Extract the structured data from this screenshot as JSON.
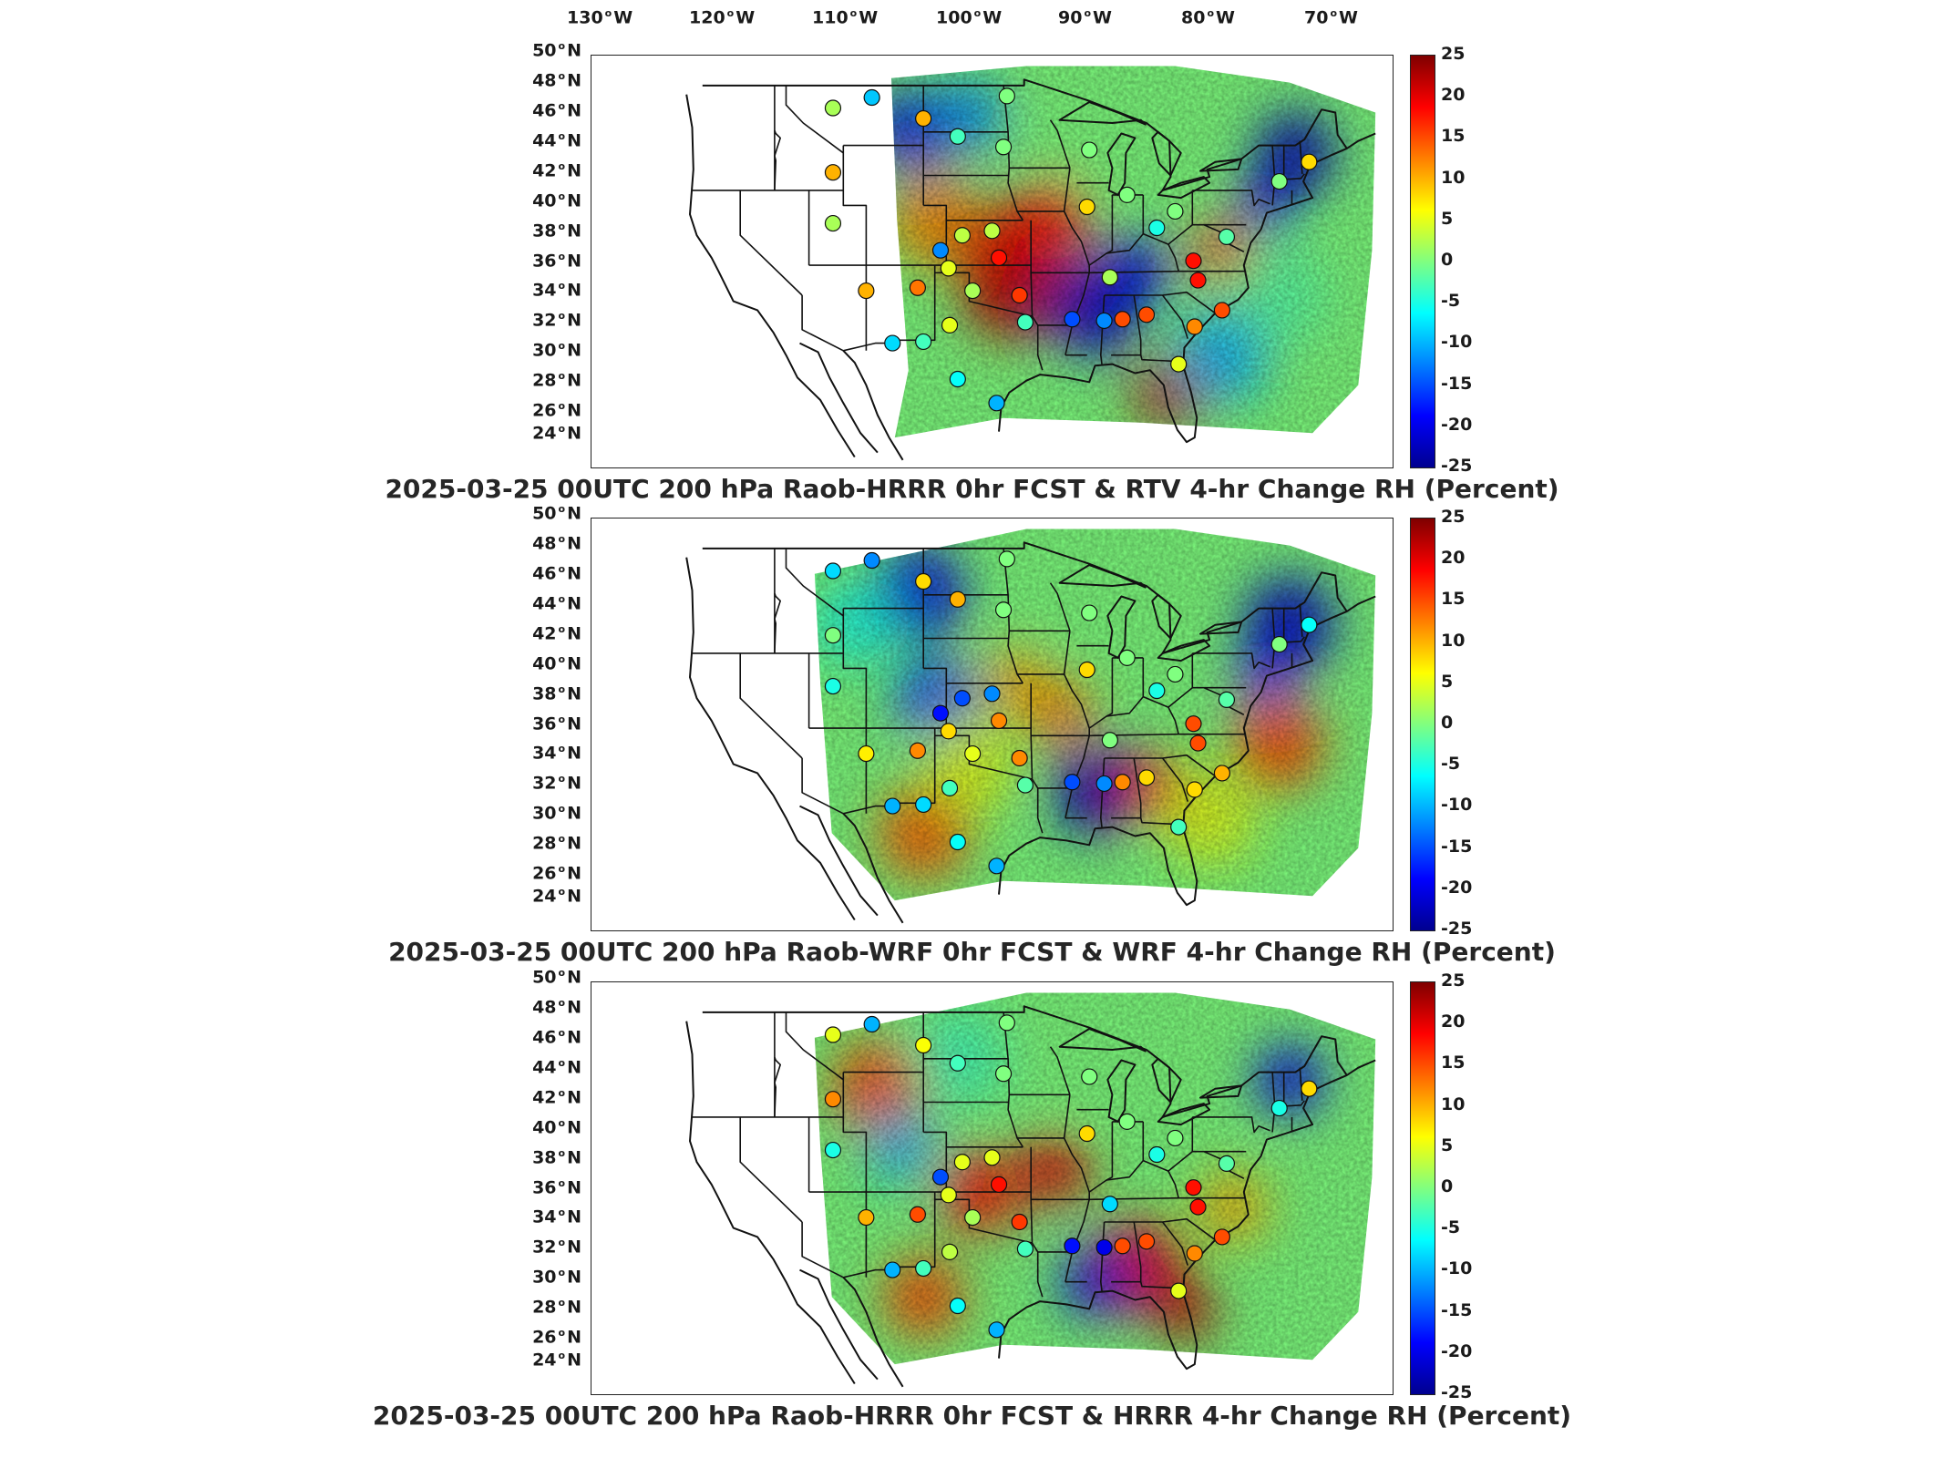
{
  "top_longitude_labels": [
    {
      "value": "130",
      "unit": "W"
    },
    {
      "value": "120",
      "unit": "W"
    },
    {
      "value": "110",
      "unit": "W"
    },
    {
      "value": "100",
      "unit": "W"
    },
    {
      "value": "90",
      "unit": "W"
    },
    {
      "value": "80",
      "unit": "W"
    },
    {
      "value": "70",
      "unit": "W"
    }
  ],
  "latitude_labels": [
    "50",
    "48",
    "46",
    "44",
    "42",
    "40",
    "38",
    "36",
    "34",
    "32",
    "30",
    "28",
    "26",
    "24"
  ],
  "latitude_unit": "N",
  "colorbar": {
    "ticks": [
      "25",
      "20",
      "15",
      "10",
      "5",
      "0",
      "-5",
      "-10",
      "-15",
      "-20",
      "-25"
    ],
    "min": -25,
    "max": 25,
    "colors": [
      "#7f0000",
      "#ff0000",
      "#ff7f00",
      "#ffff00",
      "#80ff80",
      "#00ffff",
      "#0080ff",
      "#0000ff",
      "#00008f"
    ]
  },
  "panels": [
    {
      "id": "rtv",
      "caption": "2025-03-25 00UTC 200 hPa Raob-HRRR 0hr FCST & RTV 4-hr Change RH (Percent)"
    },
    {
      "id": "wrf",
      "caption": "2025-03-25 00UTC 200 hPa Raob-WRF 0hr FCST & WRF 4-hr Change RH (Percent)"
    },
    {
      "id": "hrrr",
      "caption": "2025-03-25 00UTC 200 hPa Raob-HRRR 0hr FCST & HRRR 4-hr Change RH (Percent)"
    }
  ],
  "map_data": {
    "lon_range": [
      -130,
      -65
    ],
    "lat_range": [
      24,
      50
    ],
    "stations": [
      {
        "lon": -111.9,
        "lat": 47.5,
        "values": [
          2,
          -8,
          5
        ]
      },
      {
        "lon": -108.5,
        "lat": 48.2,
        "values": [
          -9,
          -12,
          -10
        ]
      },
      {
        "lon": -104.0,
        "lat": 46.8,
        "values": [
          10,
          8,
          6
        ]
      },
      {
        "lon": -101.0,
        "lat": 45.6,
        "values": [
          -3,
          10,
          -3
        ]
      },
      {
        "lon": -96.7,
        "lat": 48.3,
        "values": [
          0,
          0,
          0
        ]
      },
      {
        "lon": -97.0,
        "lat": 44.9,
        "values": [
          0,
          0,
          0
        ]
      },
      {
        "lon": -89.5,
        "lat": 44.7,
        "values": [
          0,
          0,
          0
        ]
      },
      {
        "lon": -111.9,
        "lat": 43.2,
        "values": [
          10,
          0,
          12
        ]
      },
      {
        "lon": -111.9,
        "lat": 39.8,
        "values": [
          2,
          -5,
          -5
        ]
      },
      {
        "lon": -109.0,
        "lat": 35.3,
        "values": [
          10,
          7,
          10
        ]
      },
      {
        "lon": -104.5,
        "lat": 35.5,
        "values": [
          13,
          12,
          15
        ]
      },
      {
        "lon": -102.5,
        "lat": 38.0,
        "values": [
          -12,
          -18,
          -15
        ]
      },
      {
        "lon": -100.6,
        "lat": 39.0,
        "values": [
          3,
          -15,
          5
        ]
      },
      {
        "lon": -98.0,
        "lat": 39.3,
        "values": [
          3,
          -12,
          5
        ]
      },
      {
        "lon": -101.8,
        "lat": 36.8,
        "values": [
          5,
          8,
          5
        ]
      },
      {
        "lon": -99.7,
        "lat": 35.3,
        "values": [
          2,
          5,
          2
        ]
      },
      {
        "lon": -97.4,
        "lat": 37.5,
        "values": [
          18,
          12,
          18
        ]
      },
      {
        "lon": -95.6,
        "lat": 35.0,
        "values": [
          16,
          12,
          16
        ]
      },
      {
        "lon": -95.1,
        "lat": 33.2,
        "values": [
          -3,
          -2,
          -3
        ]
      },
      {
        "lon": -101.7,
        "lat": 33.0,
        "values": [
          5,
          -3,
          3
        ]
      },
      {
        "lon": -104.0,
        "lat": 31.9,
        "values": [
          -3,
          -8,
          -3
        ]
      },
      {
        "lon": -106.7,
        "lat": 31.8,
        "values": [
          -8,
          -10,
          -10
        ]
      },
      {
        "lon": -101.0,
        "lat": 29.4,
        "values": [
          -6,
          -6,
          -6
        ]
      },
      {
        "lon": -97.6,
        "lat": 27.8,
        "values": [
          -10,
          -10,
          -10
        ]
      },
      {
        "lon": -91.0,
        "lat": 33.4,
        "values": [
          -15,
          -15,
          -18
        ]
      },
      {
        "lon": -88.2,
        "lat": 33.3,
        "values": [
          -12,
          -12,
          -20
        ]
      },
      {
        "lon": -87.7,
        "lat": 36.2,
        "values": [
          2,
          0,
          -8
        ]
      },
      {
        "lon": -86.6,
        "lat": 33.4,
        "values": [
          15,
          12,
          15
        ]
      },
      {
        "lon": -84.5,
        "lat": 33.7,
        "values": [
          15,
          8,
          15
        ]
      },
      {
        "lon": -83.6,
        "lat": 39.5,
        "values": [
          -5,
          -5,
          -5
        ]
      },
      {
        "lon": -86.2,
        "lat": 41.7,
        "values": [
          0,
          0,
          0
        ]
      },
      {
        "lon": -82.0,
        "lat": 40.6,
        "values": [
          0,
          0,
          0
        ]
      },
      {
        "lon": -89.7,
        "lat": 40.9,
        "values": [
          8,
          8,
          8
        ]
      },
      {
        "lon": -80.4,
        "lat": 37.3,
        "values": [
          18,
          15,
          18
        ]
      },
      {
        "lon": -80.0,
        "lat": 36.0,
        "values": [
          18,
          15,
          18
        ]
      },
      {
        "lon": -77.9,
        "lat": 34.0,
        "values": [
          15,
          10,
          15
        ]
      },
      {
        "lon": -80.3,
        "lat": 32.9,
        "values": [
          12,
          8,
          12
        ]
      },
      {
        "lon": -81.7,
        "lat": 30.4,
        "values": [
          5,
          -3,
          5
        ]
      },
      {
        "lon": -77.5,
        "lat": 38.9,
        "values": [
          -2,
          -2,
          -2
        ]
      },
      {
        "lon": -72.9,
        "lat": 42.6,
        "values": [
          0,
          0,
          -5
        ]
      },
      {
        "lon": -70.3,
        "lat": 43.9,
        "values": [
          8,
          -6,
          8
        ]
      }
    ],
    "blobs": [
      [
        {
          "lon": -96,
          "lat": 36,
          "r": 5,
          "v": 22
        },
        {
          "lon": -93,
          "lat": 40,
          "r": 3.5,
          "v": 18
        },
        {
          "lon": -103,
          "lat": 40,
          "r": 4,
          "v": 12
        },
        {
          "lon": -98,
          "lat": 38.5,
          "r": 3,
          "v": 20
        },
        {
          "lon": -105,
          "lat": 46,
          "r": 3.5,
          "v": -20
        },
        {
          "lon": -100,
          "lat": 47,
          "r": 3,
          "v": -12
        },
        {
          "lon": -89,
          "lat": 34,
          "r": 4,
          "v": -22
        },
        {
          "lon": -85.5,
          "lat": 36.5,
          "r": 3,
          "v": -20
        },
        {
          "lon": -82.5,
          "lat": 28.5,
          "r": 3,
          "v": 22
        },
        {
          "lon": -78,
          "lat": 31,
          "r": 4,
          "v": -10
        },
        {
          "lon": -71.5,
          "lat": 44.5,
          "r": 3.5,
          "v": -23
        },
        {
          "lon": -74,
          "lat": 41,
          "r": 2.5,
          "v": -20
        },
        {
          "lon": -78,
          "lat": 38,
          "r": 2.5,
          "v": 15
        },
        {
          "lon": -73,
          "lat": 35,
          "r": 4,
          "v": -2
        },
        {
          "lon": -90,
          "lat": 46,
          "r": 4,
          "v": 0
        }
      ],
      [
        {
          "lon": -104.5,
          "lat": 46,
          "r": 4,
          "v": -20
        },
        {
          "lon": -103,
          "lat": 39,
          "r": 3.5,
          "v": -15
        },
        {
          "lon": -96,
          "lat": 40,
          "r": 3,
          "v": 10
        },
        {
          "lon": -92,
          "lat": 38,
          "r": 3,
          "v": 12
        },
        {
          "lon": -89,
          "lat": 33,
          "r": 4,
          "v": -23
        },
        {
          "lon": -84,
          "lat": 33,
          "r": 3,
          "v": 18
        },
        {
          "lon": -72,
          "lat": 44,
          "r": 4,
          "v": -22
        },
        {
          "lon": -74,
          "lat": 40.5,
          "r": 2.5,
          "v": -18
        },
        {
          "lon": -73,
          "lat": 36,
          "r": 4,
          "v": 15
        },
        {
          "lon": -104,
          "lat": 30,
          "r": 4,
          "v": 14
        },
        {
          "lon": -100,
          "lat": 34.5,
          "r": 4,
          "v": 5
        },
        {
          "lon": -110,
          "lat": 44,
          "r": 3.5,
          "v": -5
        },
        {
          "lon": -90,
          "lat": 46,
          "r": 4,
          "v": 0
        },
        {
          "lon": -79,
          "lat": 31,
          "r": 4,
          "v": 5
        }
      ],
      [
        {
          "lon": -108,
          "lat": 44,
          "r": 4,
          "v": 15
        },
        {
          "lon": -106,
          "lat": 40,
          "r": 3,
          "v": -10
        },
        {
          "lon": -99,
          "lat": 37,
          "r": 3.5,
          "v": 18
        },
        {
          "lon": -92.5,
          "lat": 38.5,
          "r": 3,
          "v": 20
        },
        {
          "lon": -85,
          "lat": 32,
          "r": 4,
          "v": 20
        },
        {
          "lon": -89,
          "lat": 31,
          "r": 3,
          "v": -20
        },
        {
          "lon": -81,
          "lat": 29,
          "r": 2.5,
          "v": 22
        },
        {
          "lon": -72,
          "lat": 44.5,
          "r": 3,
          "v": -20
        },
        {
          "lon": -104,
          "lat": 30,
          "r": 3.5,
          "v": 15
        },
        {
          "lon": -77,
          "lat": 36,
          "r": 3,
          "v": 10
        },
        {
          "lon": -101,
          "lat": 46,
          "r": 4,
          "v": -3
        },
        {
          "lon": -90,
          "lat": 46,
          "r": 4,
          "v": 0
        }
      ]
    ]
  }
}
